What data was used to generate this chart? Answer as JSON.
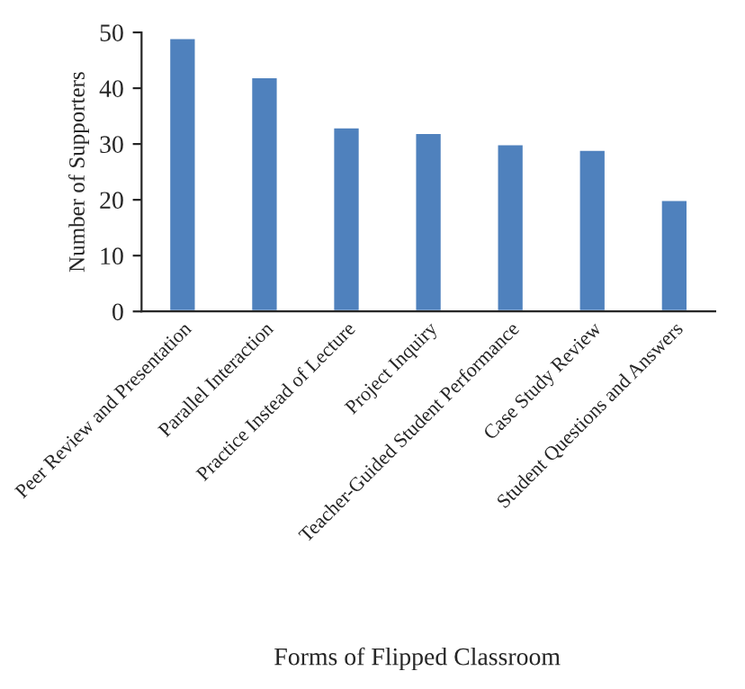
{
  "chart_data": {
    "type": "bar",
    "xlabel": "Forms of Flipped Classroom",
    "ylabel": "Number of Supporters",
    "categories": [
      "Peer Review and Presentation",
      "Parallel Interaction",
      "Practice Instead of Lecture",
      "Project Inquiry",
      "Teacher-Guided Student Performance",
      "Case Study Review",
      "Student Questions and Answers"
    ],
    "values": [
      49,
      42,
      33,
      32,
      30,
      29,
      20
    ],
    "color": "#4f81bd",
    "ylim": [
      0,
      50
    ],
    "yticks": [
      0,
      10,
      20,
      30,
      40,
      50
    ],
    "grid": false,
    "legend": false
  }
}
